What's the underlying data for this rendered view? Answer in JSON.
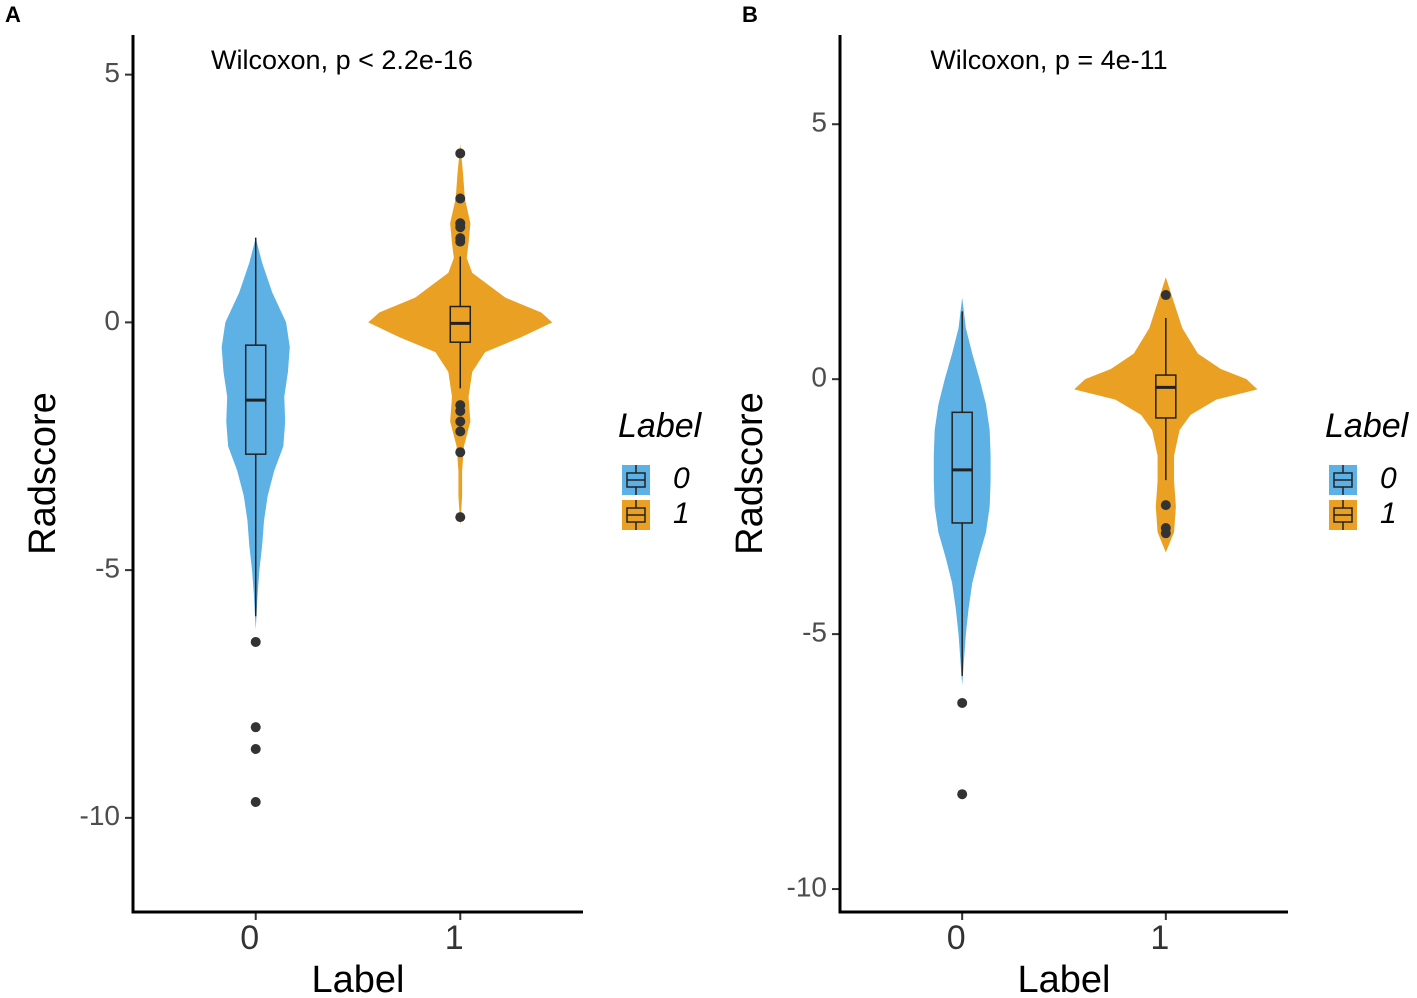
{
  "chart_data": [
    {
      "type": "violin",
      "tag": "A",
      "annotation": "Wilcoxon, p < 2.2e-16",
      "xlabel": "Label",
      "ylabel": "Radscore",
      "legend_title": "Label",
      "categories": [
        "0",
        "1"
      ],
      "ylim": [
        -11.9,
        5.8
      ],
      "yticks": [
        -10,
        -5,
        0,
        5
      ],
      "series": [
        {
          "name": "0",
          "color": "#5DB1E4",
          "box": {
            "whisker_low": -5.93,
            "q1": -2.66,
            "median": -1.57,
            "q3": -0.46,
            "whisker_high": 1.71
          },
          "outliers": [
            -6.45,
            -8.17,
            -8.61,
            -9.68
          ],
          "density": {
            "y": [
              1.7,
              1.2,
              0.6,
              0,
              -0.5,
              -1,
              -1.5,
              -2,
              -2.5,
              -3,
              -3.5,
              -4,
              -4.5,
              -5,
              -5.5,
              -6.2
            ],
            "width": [
              0,
              0.07,
              0.18,
              0.33,
              0.37,
              0.35,
              0.31,
              0.32,
              0.3,
              0.2,
              0.13,
              0.09,
              0.07,
              0.04,
              0.02,
              0
            ]
          }
        },
        {
          "name": "1",
          "color": "#E9A023",
          "box": {
            "whisker_low": -1.33,
            "q1": -0.4,
            "median": -0.02,
            "q3": 0.32,
            "whisker_high": 1.33
          },
          "outliers": [
            3.41,
            2.5,
            2.0,
            1.92,
            1.7,
            1.63,
            -1.67,
            -1.79,
            -2.0,
            -2.2,
            -2.62,
            -3.93
          ],
          "density": {
            "y": [
              3.6,
              3,
              2.5,
              2,
              1.6,
              1.3,
              1,
              0.5,
              0.2,
              0,
              -0.3,
              -0.6,
              -1,
              -1.5,
              -2,
              -2.5,
              -3,
              -3.5,
              -4.1
            ],
            "width": [
              0,
              0.03,
              0.05,
              0.11,
              0.09,
              0.07,
              0.13,
              0.49,
              0.88,
              1,
              0.66,
              0.27,
              0.13,
              0.09,
              0.11,
              0.04,
              0.02,
              0.02,
              0
            ]
          }
        }
      ]
    },
    {
      "type": "violin",
      "tag": "B",
      "annotation": "Wilcoxon, p = 4e-11",
      "xlabel": "Label",
      "ylabel": "Radscore",
      "legend_title": "Label",
      "categories": [
        "0",
        "1"
      ],
      "ylim": [
        -10.45,
        6.75
      ],
      "yticks": [
        -10,
        -5,
        0,
        5
      ],
      "series": [
        {
          "name": "0",
          "color": "#5DB1E4",
          "box": {
            "whisker_low": -5.82,
            "q1": -2.82,
            "median": -1.78,
            "q3": -0.65,
            "whisker_high": 1.33
          },
          "outliers": [
            -6.35,
            -8.14
          ],
          "density": {
            "y": [
              1.6,
              1,
              0.5,
              0,
              -0.5,
              -1,
              -1.5,
              -2,
              -2.5,
              -3,
              -3.5,
              -4,
              -4.5,
              -5,
              -5.5,
              -6
            ],
            "width": [
              0,
              0.04,
              0.11,
              0.19,
              0.26,
              0.3,
              0.31,
              0.31,
              0.3,
              0.26,
              0.18,
              0.11,
              0.07,
              0.04,
              0.02,
              0
            ]
          }
        },
        {
          "name": "1",
          "color": "#E9A023",
          "box": {
            "whisker_low": -1.98,
            "q1": -0.76,
            "median": -0.16,
            "q3": 0.08,
            "whisker_high": 1.2
          },
          "outliers": [
            1.65,
            -2.47,
            -2.92,
            -3.02
          ],
          "density": {
            "y": [
              2,
              1.5,
              1,
              0.5,
              0.2,
              0,
              -0.2,
              -0.4,
              -0.7,
              -1,
              -1.5,
              -2,
              -2.5,
              -3,
              -3.4
            ],
            "width": [
              0,
              0.09,
              0.18,
              0.35,
              0.6,
              0.88,
              1,
              0.55,
              0.27,
              0.15,
              0.09,
              0.09,
              0.11,
              0.09,
              0
            ]
          }
        }
      ]
    }
  ]
}
